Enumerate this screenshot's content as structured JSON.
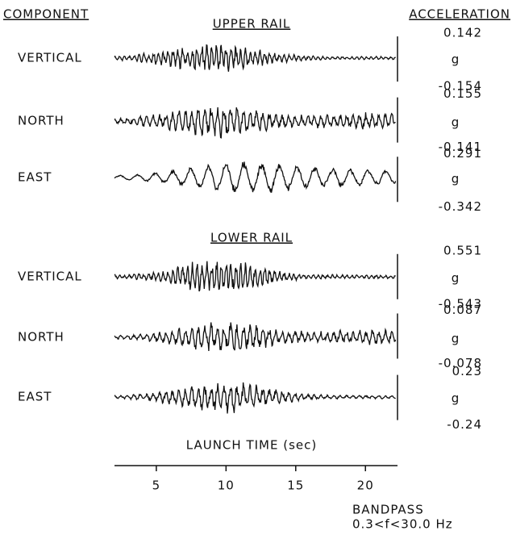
{
  "chart_data": {
    "type": "seismogram",
    "left_heading": "COMPONENT",
    "right_heading": "ACCELERATION",
    "groups": [
      {
        "title": "UPPER RAIL",
        "traces": [
          {
            "name": "VERTICAL",
            "max": 0.142,
            "unit": "g",
            "min": -0.154
          },
          {
            "name": "NORTH",
            "max": 0.155,
            "unit": "g",
            "min": -0.141
          },
          {
            "name": "EAST",
            "max": 0.291,
            "unit": "g",
            "min": -0.342
          }
        ]
      },
      {
        "title": "LOWER RAIL",
        "traces": [
          {
            "name": "VERTICAL",
            "max": 0.551,
            "unit": "g",
            "min": -0.543
          },
          {
            "name": "NORTH",
            "max": 0.087,
            "unit": "g",
            "min": -0.078
          },
          {
            "name": "EAST",
            "max": 0.23,
            "unit": "g",
            "min": -0.24
          }
        ]
      }
    ],
    "xlabel": "LAUNCH TIME (sec)",
    "xlim": [
      2,
      22.3
    ],
    "xticks": [
      5,
      10,
      15,
      20
    ],
    "note": [
      "BANDPASS",
      "0.3<f<30.0 Hz"
    ]
  }
}
